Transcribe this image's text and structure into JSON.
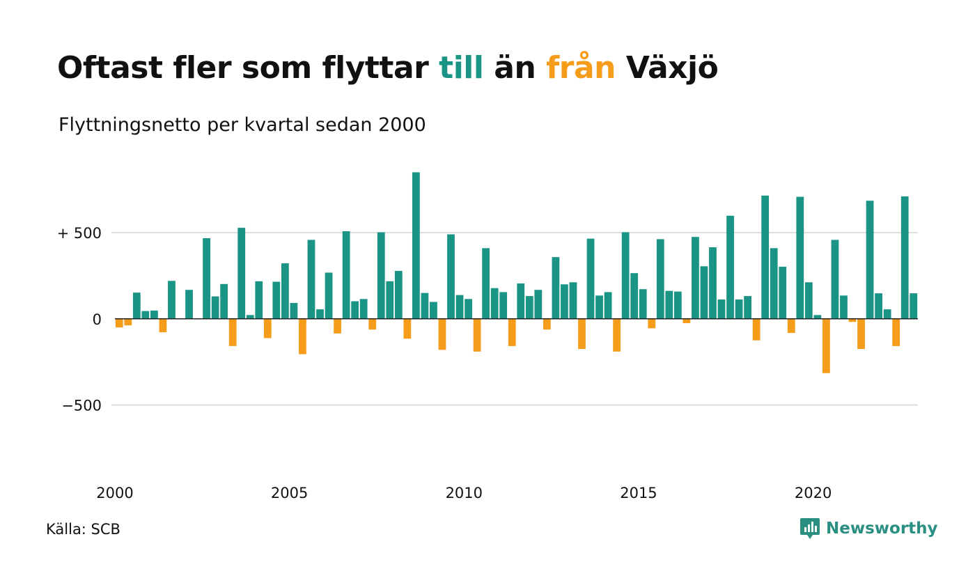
{
  "header": {
    "title_part1": "Oftast fler som flyttar",
    "title_till": "till",
    "title_mid": "än",
    "title_fran": "från",
    "title_end": "Växjö",
    "subtitle": "Flyttningsnetto per kvartal sedan 2000"
  },
  "footer": {
    "source": "Källa: SCB",
    "brand": "Newsworthy",
    "brand_icon": "newsworthy-logo-icon"
  },
  "colors": {
    "positive": "#1a9485",
    "negative": "#f59d1b",
    "grid": "#dddddd",
    "zero_line": "#222222"
  },
  "chart_data": {
    "type": "bar",
    "title": "Oftast fler som flyttar till än från Växjö",
    "subtitle": "Flyttningsnetto per kvartal sedan 2000",
    "x_tick_labels": [
      "2000",
      "2005",
      "2010",
      "2015",
      "2020"
    ],
    "y_tick_labels": [
      "+ 500",
      "0",
      "−500"
    ],
    "y_ticks": [
      500,
      0,
      -500
    ],
    "ylim": [
      -930,
      900
    ],
    "grid": true,
    "legend": "none",
    "series": [
      {
        "start_year": 2000,
        "values": [
          -50,
          -38,
          152,
          45,
          48,
          -78,
          220,
          0,
          168,
          0,
          468,
          130,
          202,
          -158,
          528,
          22,
          218,
          -112,
          215,
          322,
          92,
          -205,
          458,
          55,
          268,
          -85,
          508,
          102,
          115,
          -62,
          502,
          218,
          278,
          -115,
          850,
          150,
          98,
          -180,
          490,
          138,
          115,
          -190,
          410,
          178,
          155,
          -158,
          205,
          132,
          168,
          -62,
          358,
          200,
          212,
          -175,
          465,
          135,
          155,
          -190,
          502,
          265,
          172,
          -55,
          462,
          162,
          158,
          -25,
          475,
          305,
          415,
          112,
          598,
          112,
          132,
          -125,
          715,
          410,
          302,
          -82,
          708,
          212,
          22,
          -315,
          458,
          135,
          -18,
          -175,
          685,
          148,
          55,
          -158,
          710,
          148
        ]
      }
    ]
  }
}
